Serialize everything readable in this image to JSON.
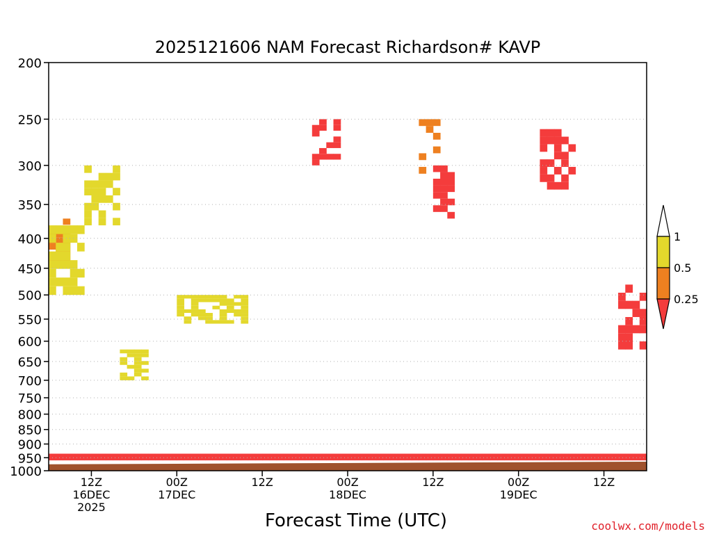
{
  "chart_data": {
    "type": "heatmap",
    "title": "2025121606 NAM Forecast Richardson# KAVP",
    "xlabel": "Forecast Time (UTC)",
    "ylabel": "",
    "credit": "coolwx.com/models",
    "y_axis": {
      "scale": "pressure (log)",
      "range": [
        1000,
        200
      ],
      "ticks": [
        200,
        250,
        300,
        350,
        400,
        450,
        500,
        550,
        600,
        650,
        700,
        750,
        800,
        850,
        900,
        950,
        1000
      ],
      "grid": "dotted horizontal at each tick"
    },
    "x_axis": {
      "range": [
        "2025-12-16T06Z",
        "2025-12-19T18Z"
      ],
      "step_hours": 1,
      "ticks": [
        {
          "time": "2025-12-16T12Z",
          "line1": "12Z",
          "line2": "16DEC",
          "line3": "2025"
        },
        {
          "time": "2025-12-17T00Z",
          "line1": "00Z",
          "line2": "17DEC",
          "line3": ""
        },
        {
          "time": "2025-12-17T12Z",
          "line1": "12Z",
          "line2": "",
          "line3": ""
        },
        {
          "time": "2025-12-18T00Z",
          "line1": "00Z",
          "line2": "18DEC",
          "line3": ""
        },
        {
          "time": "2025-12-18T12Z",
          "line1": "12Z",
          "line2": "",
          "line3": ""
        },
        {
          "time": "2025-12-19T00Z",
          "line1": "00Z",
          "line2": "19DEC",
          "line3": ""
        },
        {
          "time": "2025-12-19T12Z",
          "line1": "12Z",
          "line2": "",
          "line3": ""
        }
      ]
    },
    "colorbar": {
      "labels": [
        "1",
        "0.5",
        "0.25"
      ],
      "bins": [
        {
          "range": "> 1",
          "color": "#ffffff"
        },
        {
          "range": "0.5 – 1",
          "color": "#e3d82c"
        },
        {
          "range": "0.25 – 0.5",
          "color": "#ee8020"
        },
        {
          "range": "< 0.25",
          "color": "#f43c3c"
        }
      ]
    },
    "colors": {
      "low": "#f43c3c",
      "mid": "#ee8020",
      "high": "#e3d82c",
      "ground": "#a0522d"
    },
    "surface_pressure_hpa": {
      "start": 975,
      "end": 965
    },
    "regions": [
      {
        "bin": "< 0.25",
        "p": [
          960,
          935
        ],
        "t": [
          "2025-12-16T06Z",
          "2025-12-19T18Z"
        ],
        "note": "near-surface layer"
      },
      {
        "bin": "< 0.25",
        "p": [
          300,
          250
        ],
        "t": [
          "2025-12-17T19Z",
          "2025-12-17T23Z"
        ]
      },
      {
        "bin": "< 0.25",
        "p": [
          330,
          260
        ],
        "t": [
          "2025-12-19T03Z",
          "2025-12-19T08Z"
        ]
      },
      {
        "bin": "< 0.25",
        "p": [
          370,
          300
        ],
        "t": [
          "2025-12-18T12Z",
          "2025-12-18T15Z"
        ]
      },
      {
        "bin": "< 0.25",
        "p": [
          620,
          480
        ],
        "t": [
          "2025-12-19T14Z",
          "2025-12-19T18Z"
        ]
      },
      {
        "bin": "0.25 – 0.5",
        "p": [
          450,
          370
        ],
        "t": [
          "2025-12-16T06Z",
          "2025-12-16T09Z"
        ]
      },
      {
        "bin": "0.25 – 0.5",
        "p": [
          310,
          250
        ],
        "t": [
          "2025-12-18T10Z",
          "2025-12-18T13Z"
        ]
      },
      {
        "bin": "0.5 – 1",
        "p": [
          500,
          380
        ],
        "t": [
          "2025-12-16T06Z",
          "2025-12-16T11Z"
        ]
      },
      {
        "bin": "0.5 – 1",
        "p": [
          380,
          300
        ],
        "t": [
          "2025-12-16T11Z",
          "2025-12-16T16Z"
        ]
      },
      {
        "bin": "0.5 – 1",
        "p": [
          560,
          500
        ],
        "t": [
          "2025-12-17T00Z",
          "2025-12-17T10Z"
        ]
      },
      {
        "bin": "0.5 – 1",
        "p": [
          700,
          620
        ],
        "t": [
          "2025-12-16T16Z",
          "2025-12-16T20Z"
        ]
      }
    ]
  }
}
